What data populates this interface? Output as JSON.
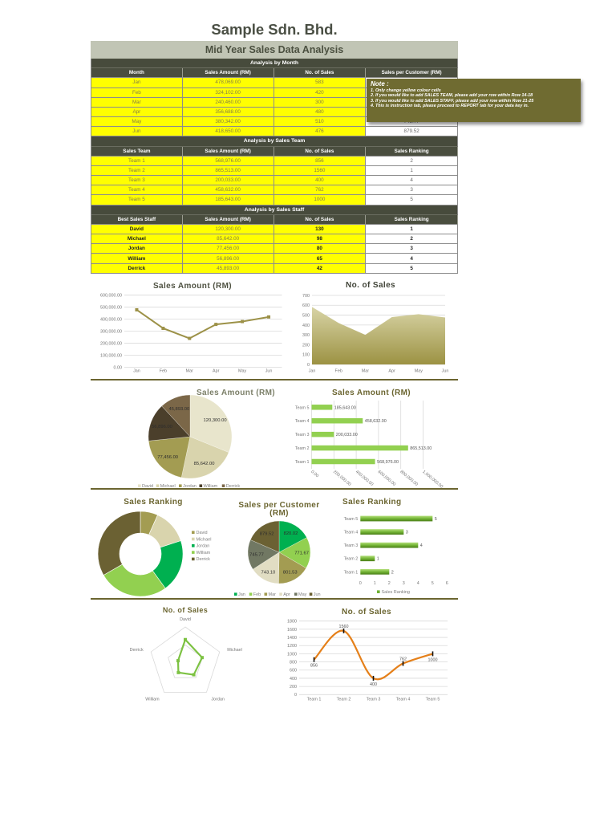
{
  "header": {
    "company": "Sample Sdn. Bhd.",
    "report_title": "Mid Year Sales Data Analysis"
  },
  "colors": {
    "title": "#4a4f44",
    "band": "#c1c5b5",
    "dark": "#474b3c",
    "yellow": "#ffff00",
    "note": "#6f6b31",
    "olive": "#6b6530"
  },
  "tables": {
    "month": {
      "title": "Analysis by Month",
      "columns": [
        "Month",
        "Sales Amount (RM)",
        "No. of Sales",
        "Sales per Customer (RM)"
      ],
      "rows": [
        [
          "Jan",
          "478,069.00",
          "583",
          "820.02"
        ],
        [
          "Feb",
          "324,102.00",
          "420",
          "771.67"
        ],
        [
          "Mar",
          "240,460.00",
          "300",
          "801.53"
        ],
        [
          "Apr",
          "356,688.00",
          "480",
          "743.10"
        ],
        [
          "May",
          "380,342.00",
          "510",
          "745.77"
        ],
        [
          "Jun",
          "418,650.00",
          "476",
          "879.52"
        ]
      ]
    },
    "team": {
      "title": "Analysis by Sales Team",
      "columns": [
        "Sales Team",
        "Sales Amount (RM)",
        "No. of Sales",
        "Sales Ranking"
      ],
      "rows": [
        [
          "Team 1",
          "568,976.00",
          "856",
          "2"
        ],
        [
          "Team 2",
          "865,513.00",
          "1560",
          "1"
        ],
        [
          "Team 3",
          "200,033.00",
          "400",
          "4"
        ],
        [
          "Team 4",
          "458,632.00",
          "762",
          "3"
        ],
        [
          "Team 5",
          "185,643.00",
          "1000",
          "5"
        ]
      ]
    },
    "staff": {
      "title": "Analysis by Sales Staff",
      "columns": [
        "Best Sales Staff",
        "Sales Amount (RM)",
        "No. of Sales",
        "Sales Ranking"
      ],
      "rows": [
        [
          "David",
          "120,300.00",
          "130",
          "1"
        ],
        [
          "Michael",
          "85,642.00",
          "98",
          "2"
        ],
        [
          "Jordan",
          "77,456.00",
          "80",
          "3"
        ],
        [
          "William",
          "56,896.00",
          "65",
          "4"
        ],
        [
          "Derrick",
          "45,893.00",
          "42",
          "5"
        ]
      ]
    }
  },
  "note": {
    "title": "Note :",
    "lines": [
      "1. Only change yellow colour cells",
      "2. If you would like to add SALES TEAM, please add your row within Row 14-18",
      "3. If you would like to add SALES STAFF, please add your row within Row 21-25",
      "4. This is instruction tab, please proceed to REPORT tab for your data key in."
    ]
  },
  "chart_data": [
    {
      "type": "line",
      "title": "Sales Amount (RM)",
      "categories": [
        "Jan",
        "Feb",
        "Mar",
        "Apr",
        "May",
        "Jun"
      ],
      "values": [
        478069,
        324102,
        240460,
        356688,
        380342,
        418650
      ],
      "xlabel": "",
      "ylabel": "",
      "ylim": [
        0,
        600000
      ],
      "yticks": [
        "0.00",
        "100,000.00",
        "200,000.00",
        "300,000.00",
        "400,000.00",
        "500,000.00",
        "600,000.00"
      ],
      "grid": true,
      "colors": [
        "#9c9147"
      ]
    },
    {
      "type": "area",
      "title": "No. of Sales",
      "categories": [
        "Jan",
        "Feb",
        "Mar",
        "Apr",
        "May",
        "Jun"
      ],
      "values": [
        583,
        420,
        300,
        480,
        510,
        476
      ],
      "xlabel": "",
      "ylabel": "",
      "ylim": [
        0,
        700
      ],
      "yticks": [
        "0",
        "100",
        "200",
        "300",
        "400",
        "500",
        "600",
        "700"
      ],
      "grid": true,
      "colors": [
        "#d8d4a6",
        "#9c9243"
      ]
    },
    {
      "type": "pie",
      "title": "Sales Amount (RM)",
      "labels": [
        "David",
        "Michael",
        "Jordan",
        "William",
        "Derrick"
      ],
      "values": [
        120300,
        85642,
        77456,
        56896,
        45893
      ],
      "data_labels": [
        "120,300.00",
        "85,642.00",
        "77,456.00",
        "56,896.00",
        "45,893.00"
      ],
      "legend_position": "bottom",
      "colors": [
        "#e8e5cc",
        "#d9d4ad",
        "#a39c52",
        "#4b3f2b",
        "#7b6748"
      ]
    },
    {
      "type": "bar",
      "orientation": "horizontal",
      "title": "Sales Amount (RM)",
      "categories": [
        "Team 1",
        "Team 2",
        "Team 3",
        "Team 4",
        "Team 5"
      ],
      "values": [
        568976,
        865513,
        200033,
        458632,
        185643
      ],
      "data_labels": [
        "568,976.00",
        "865,513.00",
        "200,033.00",
        "458,632.00",
        "185,643.00"
      ],
      "xlim": [
        0,
        1000000
      ],
      "xticks": [
        "0.00",
        "200,000.00",
        "400,000.00",
        "600,000.00",
        "800,000.00",
        "1,000,000.00"
      ],
      "grid": true,
      "colors": [
        "#92d050"
      ]
    },
    {
      "type": "pie",
      "variant": "donut",
      "title": "Sales Ranking",
      "labels": [
        "David",
        "Michael",
        "Jordan",
        "William",
        "Derrick"
      ],
      "values": [
        1,
        2,
        3,
        4,
        5
      ],
      "legend_position": "right",
      "colors": [
        "#a39c52",
        "#d9d4ad",
        "#00b050",
        "#92d050",
        "#6b6133"
      ]
    },
    {
      "type": "pie",
      "title": "Sales per Customer (RM)",
      "labels": [
        "Jan",
        "Feb",
        "Mar",
        "Apr",
        "May",
        "Jun"
      ],
      "values": [
        820.02,
        771.67,
        801.53,
        743.1,
        745.77,
        879.52
      ],
      "data_labels": [
        "820.02",
        "771.67",
        "801.53",
        "743.10",
        "745.77",
        "879.52"
      ],
      "legend_position": "bottom",
      "colors": [
        "#00b050",
        "#92d050",
        "#a39c52",
        "#e1ddc3",
        "#717863",
        "#6b6133"
      ]
    },
    {
      "type": "bar",
      "orientation": "horizontal",
      "title": "Sales Ranking",
      "categories": [
        "Team 1",
        "Team 2",
        "Team 3",
        "Team 4",
        "Team 5"
      ],
      "values": [
        2,
        1,
        4,
        3,
        5
      ],
      "xlim": [
        0,
        6
      ],
      "xticks": [
        "0",
        "1",
        "2",
        "3",
        "4",
        "5",
        "6"
      ],
      "grid": false,
      "legend": [
        "Sales Ranking"
      ],
      "legend_position": "bottom",
      "colors": [
        "#6fb132"
      ]
    },
    {
      "type": "radar",
      "title": "No. of Sales",
      "categories": [
        "David",
        "Michael",
        "Jordan",
        "William",
        "Derrick"
      ],
      "values": [
        130,
        98,
        80,
        65,
        42
      ],
      "rlim": [
        0,
        200
      ],
      "colors": [
        "#7dc243"
      ]
    },
    {
      "type": "line",
      "smooth": true,
      "title": "No. of Sales",
      "categories": [
        "Team 1",
        "Team 2",
        "Team 3",
        "Team 4",
        "Team 5"
      ],
      "values": [
        856,
        1560,
        400,
        762,
        1000
      ],
      "data_labels": [
        "856",
        "1560",
        "400",
        "762",
        "1000"
      ],
      "ylim": [
        0,
        1800
      ],
      "yticks": [
        "0",
        "200",
        "400",
        "600",
        "800",
        "1000",
        "1200",
        "1400",
        "1600",
        "1800"
      ],
      "grid": true,
      "colors": [
        "#e5801a"
      ]
    }
  ]
}
